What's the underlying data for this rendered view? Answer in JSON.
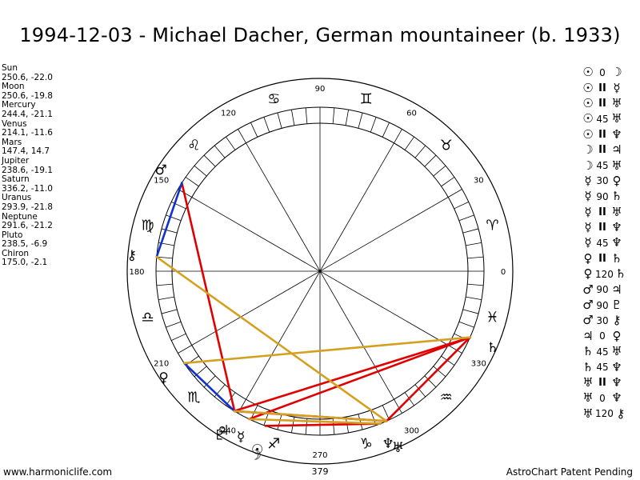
{
  "title": "1994-12-03 - Michael Dacher, German mountaineer (b. 1933)",
  "planets": [
    {
      "name": "Sun",
      "position": "250.6, -22.0",
      "lon": 250.6,
      "glyph": "☉",
      "icon": "sun-icon"
    },
    {
      "name": "Moon",
      "position": "250.6, -19.8",
      "lon": 250.6,
      "glyph": "☽",
      "icon": "moon-icon"
    },
    {
      "name": "Mercury",
      "position": "244.4, -21.1",
      "lon": 244.4,
      "glyph": "☿",
      "icon": "mercury-icon"
    },
    {
      "name": "Venus",
      "position": "214.1, -11.6",
      "lon": 214.1,
      "glyph": "♀",
      "icon": "venus-icon"
    },
    {
      "name": "Mars",
      "position": "147.4, 14.7",
      "lon": 147.4,
      "glyph": "♂",
      "icon": "mars-icon"
    },
    {
      "name": "Jupiter",
      "position": "238.6, -19.1",
      "lon": 238.6,
      "glyph": "♃",
      "icon": "jupiter-icon"
    },
    {
      "name": "Saturn",
      "position": "336.2, -11.0",
      "lon": 336.2,
      "glyph": "♄",
      "icon": "saturn-icon"
    },
    {
      "name": "Uranus",
      "position": "293.9, -21.8",
      "lon": 293.9,
      "glyph": "♅",
      "icon": "uranus-icon"
    },
    {
      "name": "Neptune",
      "position": "291.6, -21.2",
      "lon": 291.6,
      "glyph": "♆",
      "icon": "neptune-icon"
    },
    {
      "name": "Pluto",
      "position": "238.5, -6.9",
      "lon": 238.5,
      "glyph": "♇",
      "icon": "pluto-icon"
    },
    {
      "name": "Chiron",
      "position": "175.0, -2.1",
      "lon": 175.0,
      "glyph": "⚷",
      "icon": "chiron-icon"
    }
  ],
  "aspects": [
    {
      "p1": "☉",
      "aspect": "0",
      "p2": "☽"
    },
    {
      "p1": "☉",
      "aspect": "II",
      "p2": "☿"
    },
    {
      "p1": "☉",
      "aspect": "II",
      "p2": "♅"
    },
    {
      "p1": "☉",
      "aspect": "45",
      "p2": "♅"
    },
    {
      "p1": "☉",
      "aspect": "II",
      "p2": "♆"
    },
    {
      "p1": "☽",
      "aspect": "II",
      "p2": "♃"
    },
    {
      "p1": "☽",
      "aspect": "45",
      "p2": "♅"
    },
    {
      "p1": "☿",
      "aspect": "30",
      "p2": "♀"
    },
    {
      "p1": "☿",
      "aspect": "90",
      "p2": "♄"
    },
    {
      "p1": "☿",
      "aspect": "II",
      "p2": "♅"
    },
    {
      "p1": "☿",
      "aspect": "II",
      "p2": "♆"
    },
    {
      "p1": "☿",
      "aspect": "45",
      "p2": "♆"
    },
    {
      "p1": "♀",
      "aspect": "II",
      "p2": "♄"
    },
    {
      "p1": "♀",
      "aspect": "120",
      "p2": "♄"
    },
    {
      "p1": "♂",
      "aspect": "90",
      "p2": "♃"
    },
    {
      "p1": "♂",
      "aspect": "90",
      "p2": "♇"
    },
    {
      "p1": "♂",
      "aspect": "30",
      "p2": "⚷"
    },
    {
      "p1": "♃",
      "aspect": "0",
      "p2": "♀"
    },
    {
      "p1": "♄",
      "aspect": "45",
      "p2": "♅"
    },
    {
      "p1": "♄",
      "aspect": "45",
      "p2": "♆"
    },
    {
      "p1": "♅",
      "aspect": "II",
      "p2": "♆"
    },
    {
      "p1": "♅",
      "aspect": "0",
      "p2": "♆"
    },
    {
      "p1": "♅",
      "aspect": "120",
      "p2": "⚷"
    }
  ],
  "wheel": {
    "degree_labels": [
      "0",
      "30",
      "60",
      "90",
      "120",
      "150",
      "180",
      "210",
      "240",
      "270",
      "300",
      "330"
    ],
    "degree_values": [
      0,
      30,
      60,
      90,
      120,
      150,
      180,
      210,
      240,
      270,
      300,
      330
    ],
    "signs": [
      {
        "glyph": "♈",
        "icon": "aries-icon",
        "lon": 15
      },
      {
        "glyph": "♉",
        "icon": "taurus-icon",
        "lon": 45
      },
      {
        "glyph": "♊",
        "icon": "gemini-icon",
        "lon": 75
      },
      {
        "glyph": "♋",
        "icon": "cancer-icon",
        "lon": 105
      },
      {
        "glyph": "♌",
        "icon": "leo-icon",
        "lon": 135
      },
      {
        "glyph": "♍",
        "icon": "virgo-icon",
        "lon": 165
      },
      {
        "glyph": "♎",
        "icon": "libra-icon",
        "lon": 195
      },
      {
        "glyph": "♏",
        "icon": "scorpio-icon",
        "lon": 225
      },
      {
        "glyph": "♐",
        "icon": "sagittarius-icon",
        "lon": 255
      },
      {
        "glyph": "♑",
        "icon": "capricorn-icon",
        "lon": 285
      },
      {
        "glyph": "♒",
        "icon": "aquarius-icon",
        "lon": 315
      },
      {
        "glyph": "♓",
        "icon": "pisces-icon",
        "lon": 345
      }
    ]
  },
  "aspect_lines": [
    {
      "from": 147.4,
      "to": 238.6,
      "color": "#e00000"
    },
    {
      "from": 238.6,
      "to": 293.9,
      "color": "#e00000"
    },
    {
      "from": 238.5,
      "to": 336.2,
      "color": "#e00000"
    },
    {
      "from": 244.4,
      "to": 336.2,
      "color": "#e00000"
    },
    {
      "from": 293.9,
      "to": 336.2,
      "color": "#e00000"
    },
    {
      "from": 250.6,
      "to": 291.6,
      "color": "#e00000"
    },
    {
      "from": 147.4,
      "to": 175.0,
      "color": "#1030d0"
    },
    {
      "from": 214.1,
      "to": 238.6,
      "color": "#1030d0"
    },
    {
      "from": 214.1,
      "to": 336.2,
      "color": "#d4a020"
    },
    {
      "from": 175.0,
      "to": 293.9,
      "color": "#d4a020"
    },
    {
      "from": 238.5,
      "to": 293.9,
      "color": "#d4a020"
    },
    {
      "from": 244.4,
      "to": 291.6,
      "color": "#d4a020"
    }
  ],
  "footer": {
    "left": "www.harmoniclife.com",
    "center": "379",
    "right": "AstroChart Patent Pending"
  }
}
